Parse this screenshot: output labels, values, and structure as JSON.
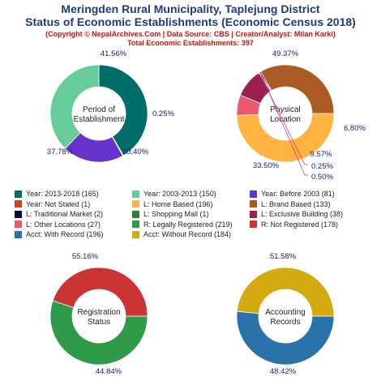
{
  "header": {
    "title_line1": "Meringden Rural Municipality, Taplejung District",
    "title_line2": "Status of Economic Establishments (Economic Census 2018)",
    "copyright": "(Copyright © NepalArchives.Com | Data Source: CBS | Creator/Analyst: Milan Karki)",
    "total": "Total Economic Establishments: 397"
  },
  "colors": {
    "title": "#1f3a80",
    "subtitle": "#cc1111",
    "pct_label": "#1a1a80"
  },
  "legend": [
    {
      "label": "Year: 2013-2018 (165)",
      "color": "#006d66"
    },
    {
      "label": "Year: 2003-2013 (150)",
      "color": "#66cc99"
    },
    {
      "label": "Year: Before 2003 (81)",
      "color": "#6633cc"
    },
    {
      "label": "Year: Not Stated (1)",
      "color": "#cc4422"
    },
    {
      "label": "L: Home Based (196)",
      "color": "#ffb340"
    },
    {
      "label": "L: Brand Based (133)",
      "color": "#aa5a22"
    },
    {
      "label": "L: Traditional Market (2)",
      "color": "#0a0a3a"
    },
    {
      "label": "L: Shopping Mall (1)",
      "color": "#2e7d32"
    },
    {
      "label": "L: Exclusive Building (38)",
      "color": "#9a2050"
    },
    {
      "label": "L: Other Locations (27)",
      "color": "#e85a6e"
    },
    {
      "label": "R: Legally Registered (219)",
      "color": "#2e9a4a"
    },
    {
      "label": "R: Not Registered (178)",
      "color": "#cc3333"
    },
    {
      "label": "Acct: With Record (196)",
      "color": "#2a72aa"
    },
    {
      "label": "Acct: Without Record (184)",
      "color": "#d4aa10"
    }
  ],
  "chart_data": [
    {
      "type": "pie",
      "title": "Period of Establishment",
      "center_label": [
        "Period of",
        "Establishment"
      ],
      "start_angle_deg": 90,
      "slices": [
        {
          "label": "Year: 2013-2018",
          "value": 165,
          "pct": "41.56%",
          "color": "#006d66"
        },
        {
          "label": "Year: Not Stated",
          "value": 1,
          "pct": "0.25%",
          "color": "#cc4422"
        },
        {
          "label": "Year: Before 2003",
          "value": 81,
          "pct": "20.40%",
          "color": "#6633cc"
        },
        {
          "label": "Year: 2003-2013",
          "value": 150,
          "pct": "37.78%",
          "color": "#66cc99"
        }
      ]
    },
    {
      "type": "pie",
      "title": "Physical Location",
      "center_label": [
        "Physical",
        "Location"
      ],
      "start_angle_deg": 0,
      "slices": [
        {
          "label": "L: Home Based",
          "value": 196,
          "pct": "49.37%",
          "color": "#ffb340"
        },
        {
          "label": "L: Other Locations",
          "value": 27,
          "pct": "6.80%",
          "color": "#e85a6e"
        },
        {
          "label": "L: Exclusive Building",
          "value": 38,
          "pct": "9.57%",
          "color": "#9a2050"
        },
        {
          "label": "L: Shopping Mall",
          "value": 1,
          "pct": "0.25%",
          "color": "#2e7d32"
        },
        {
          "label": "L: Traditional Market",
          "value": 2,
          "pct": "0.50%",
          "color": "#0a0a3a"
        },
        {
          "label": "L: Brand Based",
          "value": 133,
          "pct": "33.50%",
          "color": "#aa5a22"
        }
      ]
    },
    {
      "type": "pie",
      "title": "Registration Status",
      "center_label": [
        "Registration",
        "Status"
      ],
      "start_angle_deg": 0,
      "slices": [
        {
          "label": "R: Legally Registered",
          "value": 219,
          "pct": "55.16%",
          "color": "#2e9a4a"
        },
        {
          "label": "R: Not Registered",
          "value": 178,
          "pct": "44.84%",
          "color": "#cc3333"
        }
      ]
    },
    {
      "type": "pie",
      "title": "Accounting Records",
      "center_label": [
        "Accounting",
        "Records"
      ],
      "start_angle_deg": 0,
      "slices": [
        {
          "label": "Acct: With Record",
          "value": 196,
          "pct": "51.58%",
          "color": "#2a72aa"
        },
        {
          "label": "Acct: Without Record",
          "value": 184,
          "pct": "48.42%",
          "color": "#d4aa10"
        }
      ]
    }
  ]
}
